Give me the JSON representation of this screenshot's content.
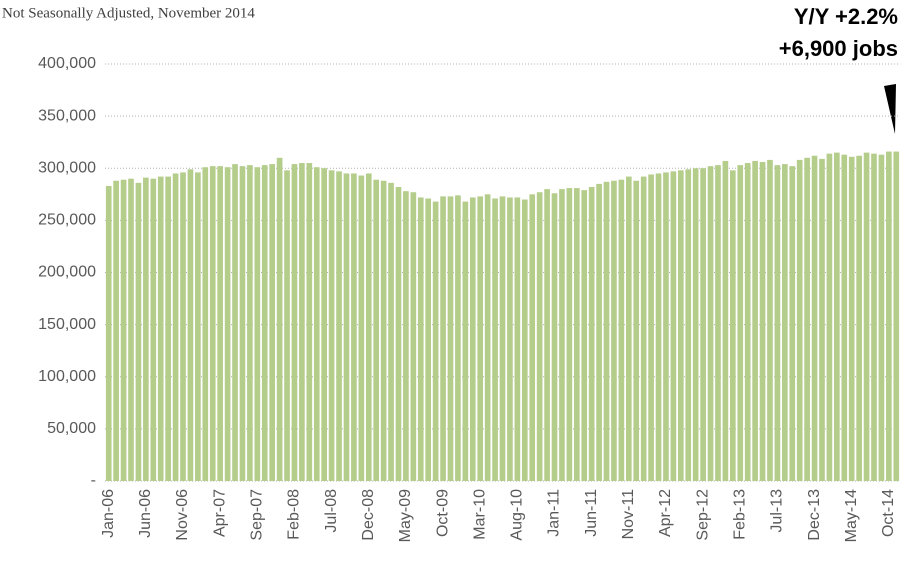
{
  "chart_data": {
    "type": "bar",
    "subtitle": "Not Seasonally Adjusted, November 2014",
    "annotations": [
      "Y/Y  +2.2%",
      "+6,900 jobs"
    ],
    "categories": [
      "Jan-06",
      null,
      null,
      null,
      null,
      "Jun-06",
      null,
      null,
      null,
      null,
      "Nov-06",
      null,
      null,
      null,
      null,
      "Apr-07",
      null,
      null,
      null,
      null,
      "Sep-07",
      null,
      null,
      null,
      null,
      "Feb-08",
      null,
      null,
      null,
      null,
      "Jul-08",
      null,
      null,
      null,
      null,
      "Dec-08",
      null,
      null,
      null,
      null,
      "May-09",
      null,
      null,
      null,
      null,
      "Oct-09",
      null,
      null,
      null,
      null,
      "Mar-10",
      null,
      null,
      null,
      null,
      "Aug-10",
      null,
      null,
      null,
      null,
      "Jan-11",
      null,
      null,
      null,
      null,
      "Jun-11",
      null,
      null,
      null,
      null,
      "Nov-11",
      null,
      null,
      null,
      null,
      "Apr-12",
      null,
      null,
      null,
      null,
      "Sep-12",
      null,
      null,
      null,
      null,
      "Feb-13",
      null,
      null,
      null,
      null,
      "Jul-13",
      null,
      null,
      null,
      null,
      "Dec-13",
      null,
      null,
      null,
      null,
      "May-14",
      null,
      null,
      null,
      null,
      "Oct-14",
      null
    ],
    "values": [
      283000,
      288000,
      289000,
      290000,
      286000,
      291000,
      290000,
      292000,
      292000,
      295000,
      296000,
      299000,
      296000,
      301000,
      302000,
      302000,
      301000,
      304000,
      302000,
      303000,
      301000,
      303000,
      304000,
      310000,
      298000,
      304000,
      305000,
      305000,
      301000,
      300000,
      298000,
      297000,
      295000,
      295000,
      293000,
      295000,
      289000,
      288000,
      286000,
      282000,
      278000,
      277000,
      272000,
      271000,
      268000,
      273000,
      273000,
      274000,
      268000,
      272000,
      273000,
      275000,
      271000,
      273000,
      272000,
      272000,
      270000,
      275000,
      277000,
      280000,
      276000,
      280000,
      281000,
      281000,
      279000,
      282000,
      285000,
      287000,
      288000,
      289000,
      292000,
      288000,
      292000,
      294000,
      295000,
      296000,
      297000,
      298000,
      299000,
      300000,
      300000,
      302000,
      303000,
      307000,
      298000,
      303000,
      305000,
      307000,
      306000,
      308000,
      303000,
      304000,
      302000,
      308000,
      310000,
      312000,
      309000,
      314000,
      315000,
      313000,
      311000,
      312000,
      315000,
      314000,
      313000,
      316000,
      316000
    ],
    "color": "#b4cd8b",
    "ylim": [
      0,
      400000
    ],
    "yticks": [
      {
        "value": 0,
        "label": "-"
      },
      {
        "value": 50000,
        "label": "50,000"
      },
      {
        "value": 100000,
        "label": "100,000"
      },
      {
        "value": 150000,
        "label": "150,000"
      },
      {
        "value": 200000,
        "label": "200,000"
      },
      {
        "value": 250000,
        "label": "250,000"
      },
      {
        "value": 300000,
        "label": "300,000"
      },
      {
        "value": 350000,
        "label": "350,000"
      },
      {
        "value": 400000,
        "label": "400,000"
      }
    ],
    "grid": true
  }
}
